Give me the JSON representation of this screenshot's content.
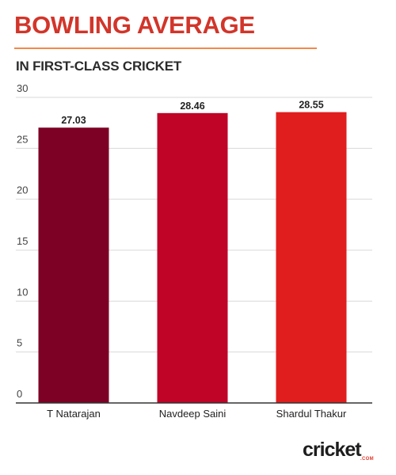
{
  "header": {
    "title": "BOWLING AVERAGE",
    "subtitle": "IN FIRST-CLASS CRICKET"
  },
  "colors": {
    "title": "#d2352a",
    "rule": "#f08a4b",
    "grid": "#d9d9d9",
    "axis": "#333333",
    "tick_text": "#444444",
    "label_text": "#222222"
  },
  "chart_data": {
    "type": "bar",
    "title": "BOWLING AVERAGE",
    "subtitle": "IN FIRST-CLASS CRICKET",
    "xlabel": "",
    "ylabel": "",
    "categories": [
      "T Natarajan",
      "Navdeep Saini",
      "Shardul Thakur"
    ],
    "values": [
      27.03,
      28.46,
      28.55
    ],
    "value_labels": [
      "27.03",
      "28.46",
      "28.55"
    ],
    "bar_colors": [
      "#7d0124",
      "#bf0428",
      "#e01e1e"
    ],
    "ylim": [
      0,
      30
    ],
    "yticks": [
      0,
      5,
      10,
      15,
      20,
      25,
      30
    ],
    "grid": true,
    "legend": "none"
  },
  "brand": {
    "logo_text": "cricket",
    "logo_subtext": ".COM"
  }
}
